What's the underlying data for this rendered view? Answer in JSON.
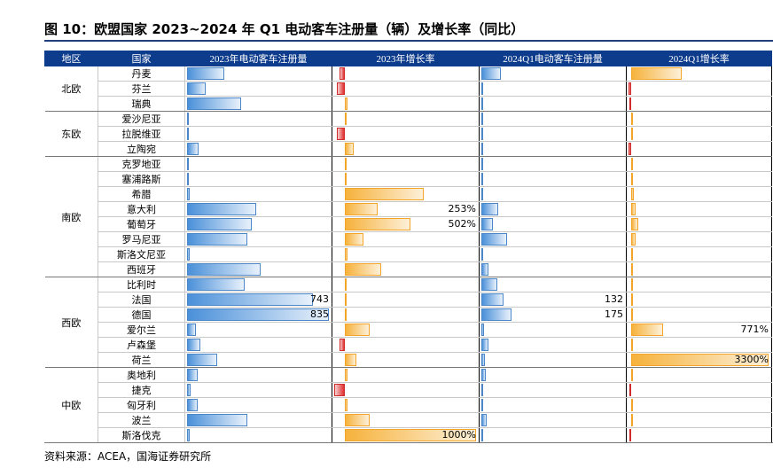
{
  "title": "图 10：欧盟国家 2023~2024 年 Q1 电动客车注册量（辆）及增长率（同比）",
  "table": {
    "headers": [
      "地区",
      "国家",
      "2023年电动客车注册量",
      "2023年增长率",
      "2024Q1电动客车注册量",
      "2024Q1增长率"
    ],
    "groups": [
      {
        "region": "北欧",
        "rows": [
          {
            "country": "丹麦",
            "values": [
              220,
              -40,
              115,
              1220
            ]
          },
          {
            "country": "芬兰",
            "values": [
              107,
              -60,
              10,
              -60
            ]
          },
          {
            "country": "瑞典",
            "values": [
              316,
              20,
              12,
              -40
            ]
          }
        ]
      },
      {
        "region": "东欧",
        "rows": [
          {
            "country": "爱沙尼亚",
            "values": [
              3,
              5,
              1,
              5
            ]
          },
          {
            "country": "拉脱维亚",
            "values": [
              8,
              -60,
              1,
              5
            ]
          },
          {
            "country": "立陶宛",
            "values": [
              66,
              70,
              2,
              -50
            ]
          }
        ]
      },
      {
        "region": "南欧",
        "rows": [
          {
            "country": "克罗地亚",
            "values": [
              5,
              10,
              1,
              10
            ]
          },
          {
            "country": "塞浦路斯",
            "values": [
              4,
              5,
              1,
              10
            ]
          },
          {
            "country": "希腊",
            "values": [
              15,
              600,
              2,
              60
            ]
          },
          {
            "country": "意大利",
            "values": [
              408,
              253,
              97,
              100
            ],
            "value_labels": [
              null,
              "253%",
              null,
              null
            ]
          },
          {
            "country": "葡萄牙",
            "values": [
              382,
              502,
              66,
              170
            ],
            "value_labels": [
              null,
              "502%",
              null,
              null
            ]
          },
          {
            "country": "罗马尼亚",
            "values": [
              357,
              145,
              150,
              100
            ]
          },
          {
            "country": "斯洛文尼亚",
            "values": [
              15,
              20,
              3,
              40
            ]
          },
          {
            "country": "西班牙",
            "values": [
              433,
              280,
              40,
              40
            ]
          }
        ]
      },
      {
        "region": "西欧",
        "rows": [
          {
            "country": "比利时",
            "values": [
              337,
              15,
              95,
              30
            ]
          },
          {
            "country": "法国",
            "values": [
              743,
              8,
              132,
              20
            ],
            "value_labels": [
              "743",
              null,
              "132",
              null
            ]
          },
          {
            "country": "德国",
            "values": [
              835,
              12,
              175,
              15
            ],
            "value_labels": [
              "835",
              null,
              "175",
              null
            ]
          },
          {
            "country": "爱尔兰",
            "values": [
              51,
              190,
              15,
              771
            ],
            "value_labels": [
              null,
              null,
              null,
              "771%"
            ]
          },
          {
            "country": "卢森堡",
            "values": [
              77,
              -40,
              40,
              40
            ]
          },
          {
            "country": "荷兰",
            "values": [
              178,
              90,
              20,
              3300
            ],
            "value_labels": [
              null,
              null,
              null,
              "3300%"
            ]
          }
        ]
      },
      {
        "region": "中欧",
        "rows": [
          {
            "country": "奥地利",
            "values": [
              61,
              20,
              25,
              10
            ]
          },
          {
            "country": "捷克",
            "values": [
              20,
              -80,
              2,
              -40
            ]
          },
          {
            "country": "匈牙利",
            "values": [
              61,
              20,
              10,
              20
            ]
          },
          {
            "country": "波兰",
            "values": [
              357,
              190,
              30,
              30
            ]
          },
          {
            "country": "斯洛伐克",
            "values": [
              15,
              1000,
              2,
              -40
            ],
            "value_labels": [
              null,
              "1000%",
              null,
              null
            ]
          }
        ]
      }
    ]
  },
  "source": "资料来源：ACEA，国海证券研究所"
}
